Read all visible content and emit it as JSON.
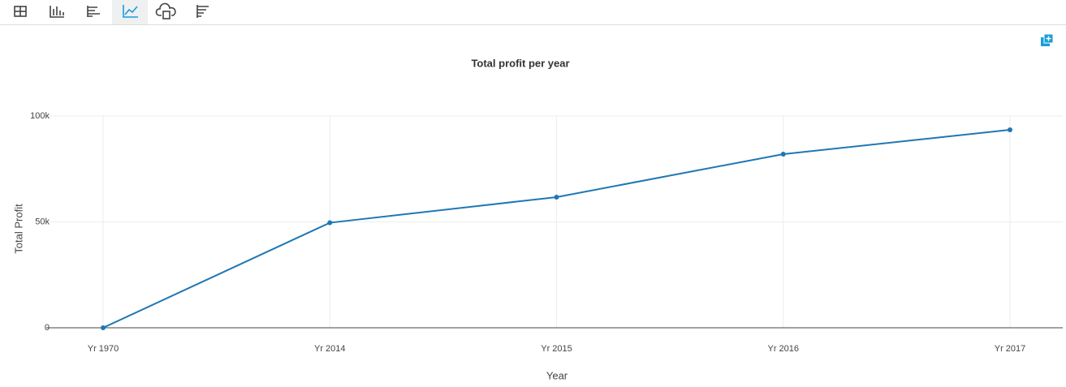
{
  "chart_data": {
    "type": "line",
    "title": "Total profit per year",
    "x_label": "Year",
    "y_label": "Total Profit",
    "categories": [
      "Yr 1970",
      "Yr 2014",
      "Yr 2015",
      "Yr 2016",
      "Yr 2017"
    ],
    "values": [
      0,
      49600,
      61700,
      82000,
      93500
    ],
    "color": "#1f77b4",
    "ylim": [
      0,
      100000
    ],
    "yticks": [
      0,
      {
        "value": 50000,
        "label": "50k"
      },
      {
        "value": 100000,
        "label": "100k"
      }
    ],
    "grid": true
  }
}
